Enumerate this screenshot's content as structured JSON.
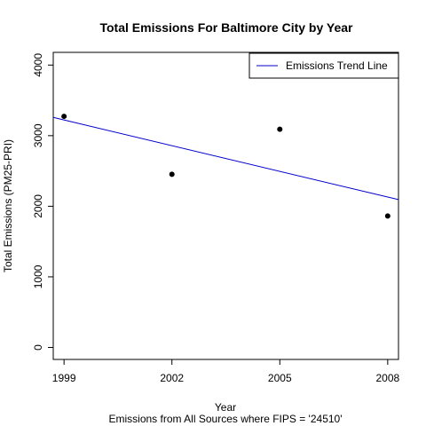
{
  "chart_data": {
    "type": "scatter",
    "title": "Total Emissions For Baltimore City by Year",
    "xlabel": "Year",
    "ylabel": "Total Emissions (PM25-PRI)",
    "subtitle": "Emissions from All Sources where FIPS = '24510'",
    "x_ticks": [
      "1999",
      "2002",
      "2005",
      "2008"
    ],
    "y_ticks": [
      "0",
      "1000",
      "2000",
      "3000",
      "4000"
    ],
    "xlim": [
      1998.7,
      2008.3
    ],
    "ylim": [
      -170,
      4180
    ],
    "grid": false,
    "legend_position": "top-right",
    "points": [
      {
        "x": 1999,
        "y": 3274
      },
      {
        "x": 2002,
        "y": 2453
      },
      {
        "x": 2005,
        "y": 3091
      },
      {
        "x": 2008,
        "y": 1862
      }
    ],
    "trend_line": {
      "name": "Emissions Trend Line",
      "color": "#0000cc",
      "x": [
        1998.7,
        2008.3
      ],
      "y": [
        3259,
        2094
      ]
    },
    "point_color": "#000000"
  }
}
